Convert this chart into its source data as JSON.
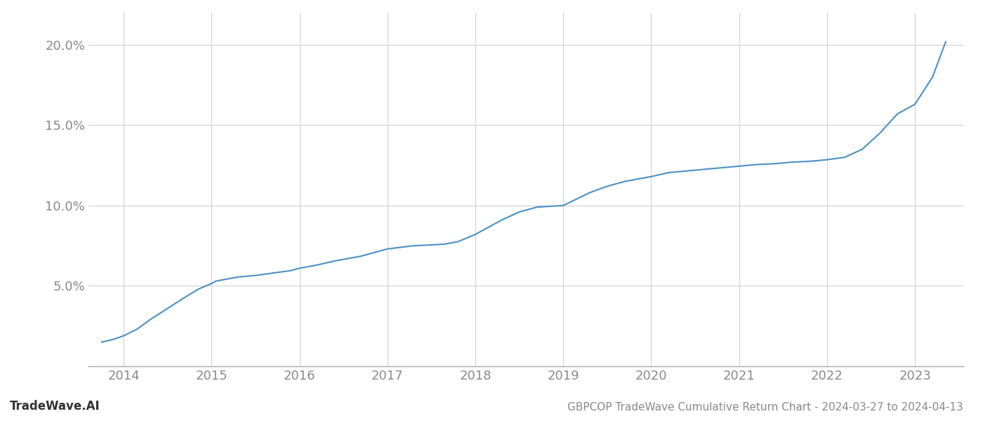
{
  "title_bottom": "GBPCOP TradeWave Cumulative Return Chart - 2024-03-27 to 2024-04-13",
  "watermark": "TradeWave.AI",
  "line_color": "#4a90c4",
  "background_color": "#ffffff",
  "grid_color": "#d0d0d0",
  "x_years": [
    2014,
    2015,
    2016,
    2017,
    2018,
    2019,
    2020,
    2021,
    2022,
    2023
  ],
  "x_values": [
    2013.75,
    2013.9,
    2014.0,
    2014.15,
    2014.3,
    2014.5,
    2014.7,
    2014.85,
    2015.0,
    2015.05,
    2015.15,
    2015.3,
    2015.5,
    2015.7,
    2015.9,
    2016.0,
    2016.2,
    2016.4,
    2016.7,
    2017.0,
    2017.15,
    2017.3,
    2017.5,
    2017.65,
    2017.8,
    2018.0,
    2018.1,
    2018.2,
    2018.3,
    2018.5,
    2018.7,
    2018.9,
    2019.0,
    2019.15,
    2019.3,
    2019.5,
    2019.7,
    2019.9,
    2020.0,
    2020.2,
    2020.5,
    2020.8,
    2021.0,
    2021.1,
    2021.2,
    2021.4,
    2021.5,
    2021.6,
    2021.8,
    2022.0,
    2022.2,
    2022.4,
    2022.6,
    2022.8,
    2023.0,
    2023.2,
    2023.35
  ],
  "y_values": [
    1.5,
    1.7,
    1.9,
    2.3,
    2.9,
    3.6,
    4.3,
    4.8,
    5.15,
    5.3,
    5.4,
    5.55,
    5.65,
    5.8,
    5.95,
    6.1,
    6.3,
    6.55,
    6.85,
    7.3,
    7.4,
    7.5,
    7.55,
    7.6,
    7.75,
    8.2,
    8.5,
    8.8,
    9.1,
    9.6,
    9.9,
    9.97,
    10.0,
    10.4,
    10.8,
    11.2,
    11.5,
    11.7,
    11.8,
    12.05,
    12.2,
    12.35,
    12.45,
    12.5,
    12.55,
    12.6,
    12.65,
    12.7,
    12.75,
    12.85,
    13.0,
    13.5,
    14.5,
    15.7,
    16.3,
    18.0,
    20.2
  ],
  "ylim": [
    0,
    22
  ],
  "xlim": [
    2013.6,
    2023.55
  ],
  "yticks": [
    5.0,
    10.0,
    15.0,
    20.0
  ],
  "ytick_labels": [
    "5.0%",
    "10.0%",
    "15.0%",
    "20.0%"
  ],
  "title_fontsize": 11,
  "watermark_fontsize": 12,
  "tick_fontsize": 13,
  "tick_color": "#888888",
  "spine_color": "#aaaaaa"
}
